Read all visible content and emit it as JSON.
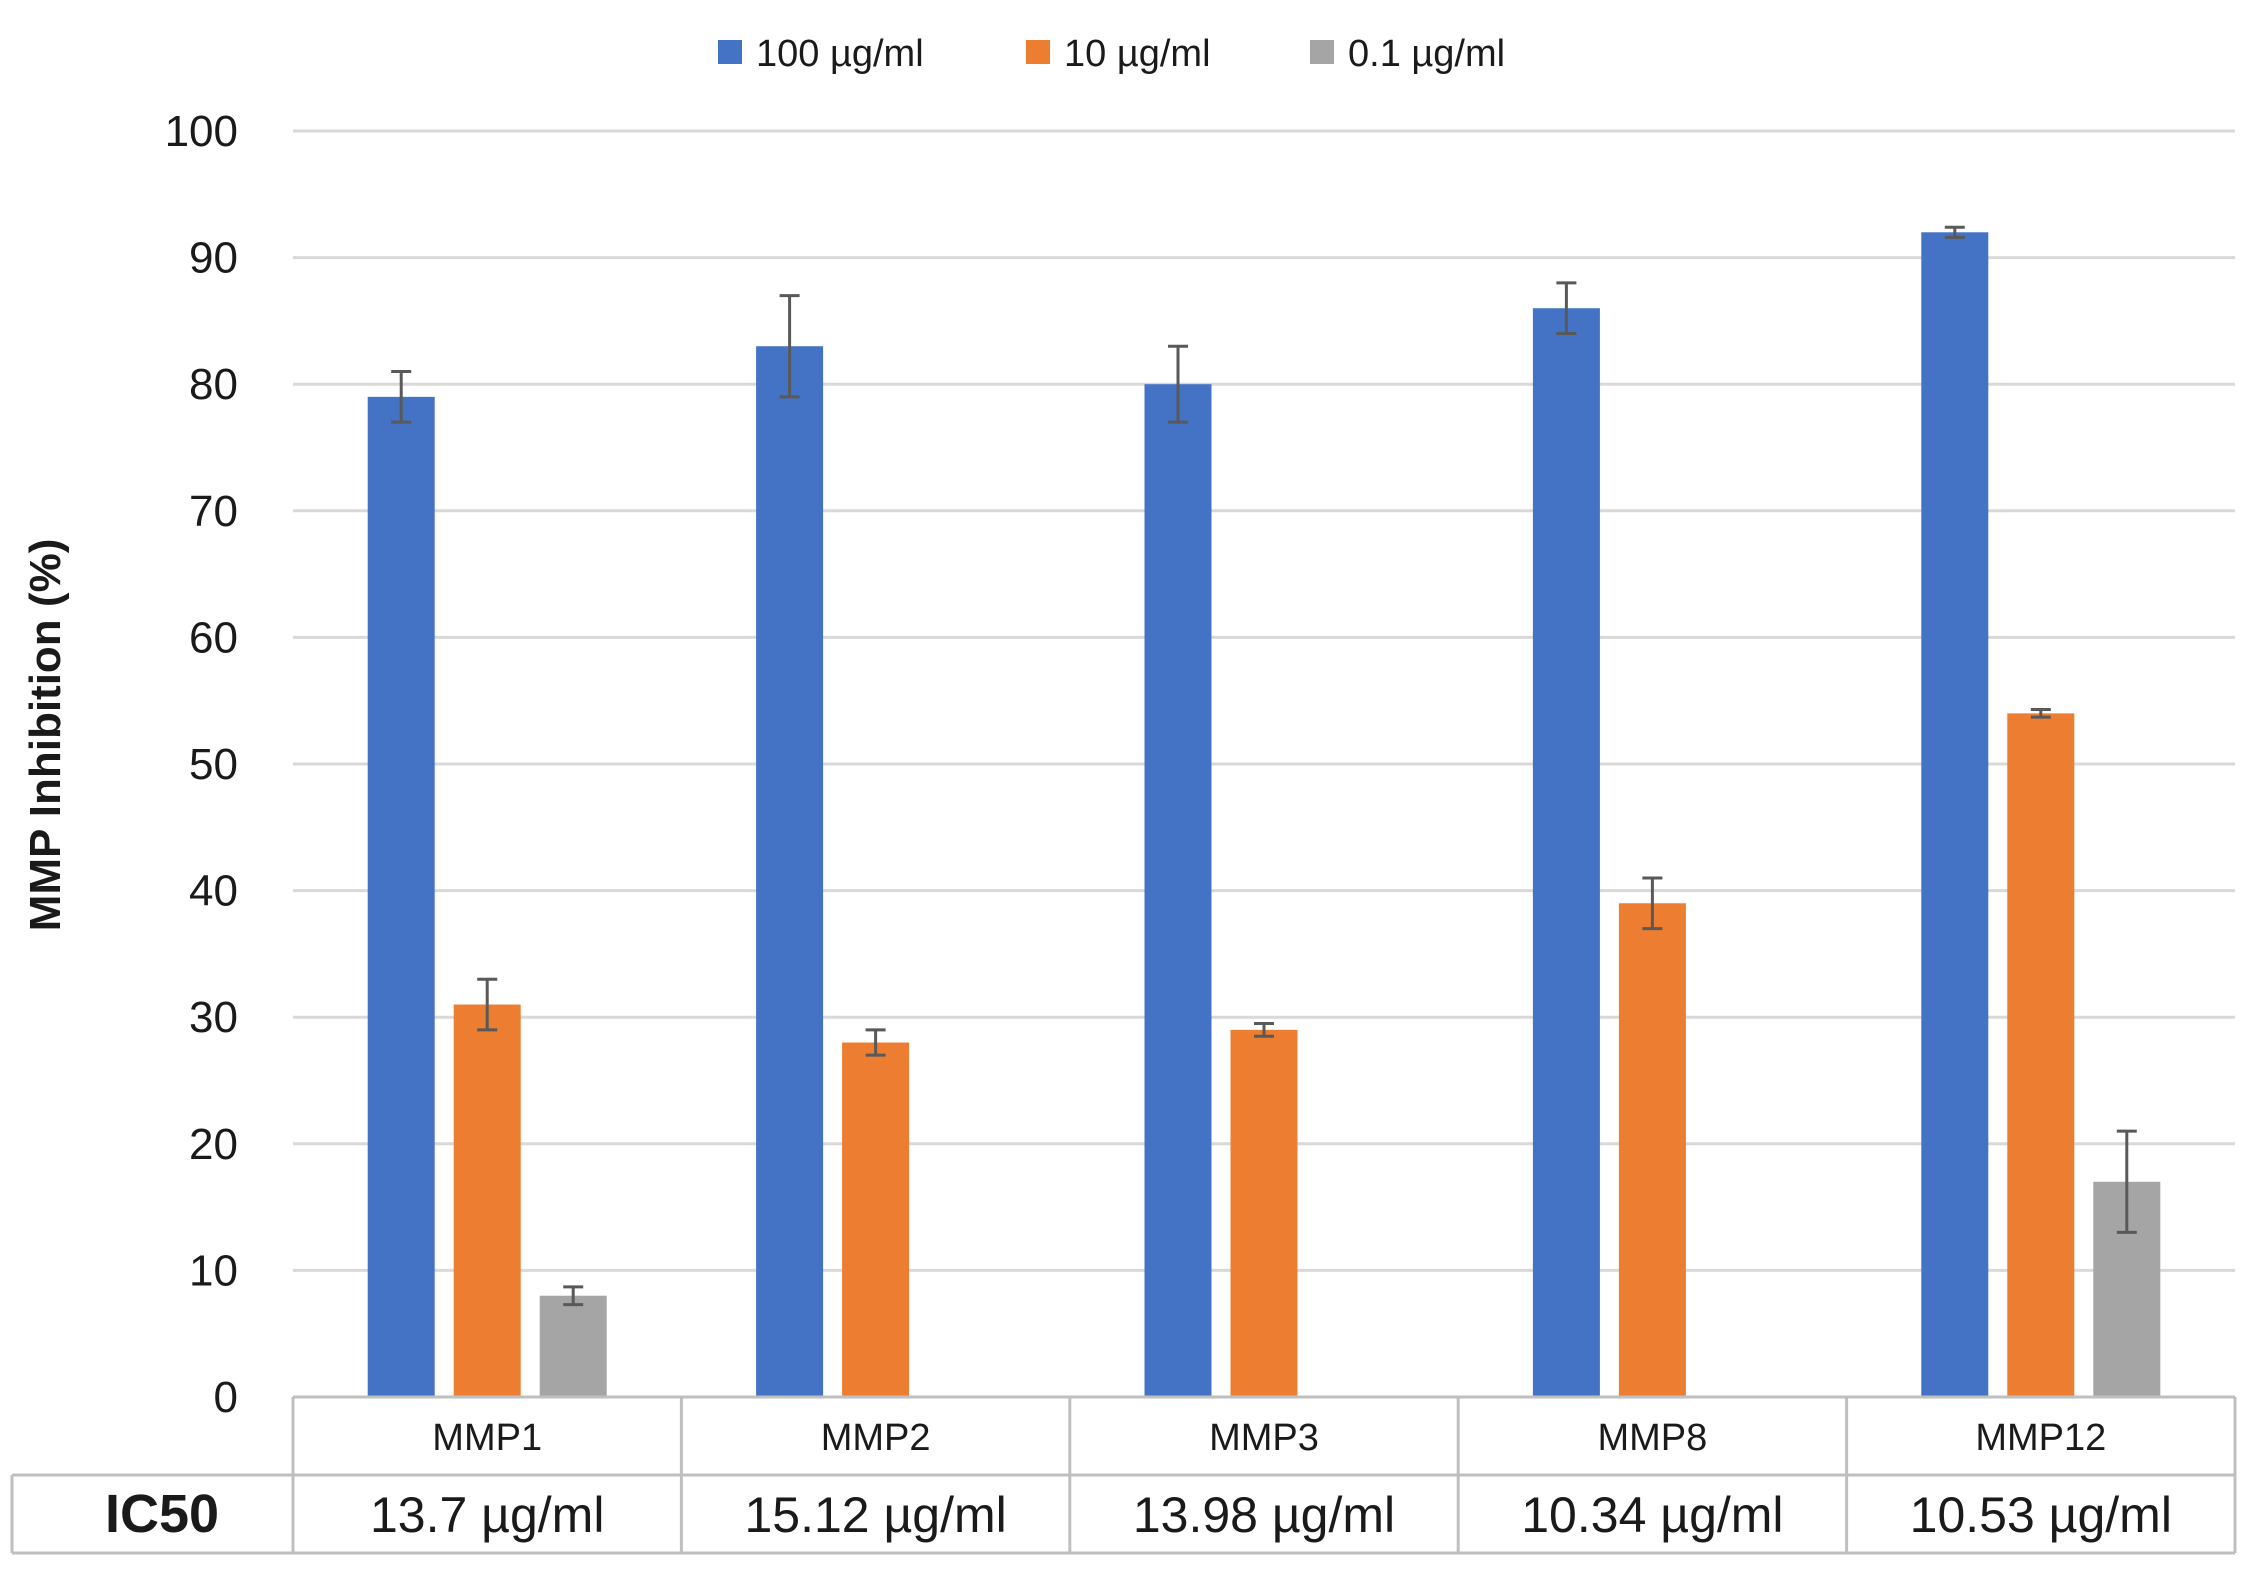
{
  "chart_data": {
    "type": "bar",
    "title": "",
    "xlabel": "",
    "ylabel": "MMP Inhibition (%)",
    "ylim": [
      0,
      100
    ],
    "yticks": [
      0,
      10,
      20,
      30,
      40,
      50,
      60,
      70,
      80,
      90,
      100
    ],
    "grid": true,
    "legend_position": "top-center",
    "categories": [
      "MMP1",
      "MMP2",
      "MMP3",
      "MMP8",
      "MMP12"
    ],
    "series": [
      {
        "name": "100 µg/ml",
        "color": "#4472C4",
        "values": [
          79,
          83,
          80,
          86,
          92
        ],
        "errors": [
          2,
          4,
          3,
          2,
          0.4
        ]
      },
      {
        "name": "10 µg/ml",
        "color": "#ED7D31",
        "values": [
          31,
          28,
          29,
          39,
          54
        ],
        "errors": [
          2,
          1,
          0.5,
          2,
          0.3
        ]
      },
      {
        "name": "0.1 µg/ml",
        "color": "#A5A5A5",
        "values": [
          8,
          null,
          null,
          null,
          17
        ],
        "errors": [
          0.7,
          null,
          null,
          null,
          4
        ]
      }
    ],
    "table": {
      "row_header": "IC50",
      "values": [
        "13.7 µg/ml",
        "15.12 µg/ml",
        "13.98 µg/ml",
        "10.34 µg/ml",
        "10.53 µg/ml"
      ]
    }
  },
  "colors": {
    "grid": "#D9D9D9",
    "error_bar": "#595959",
    "table_border": "#BFBFBF"
  }
}
